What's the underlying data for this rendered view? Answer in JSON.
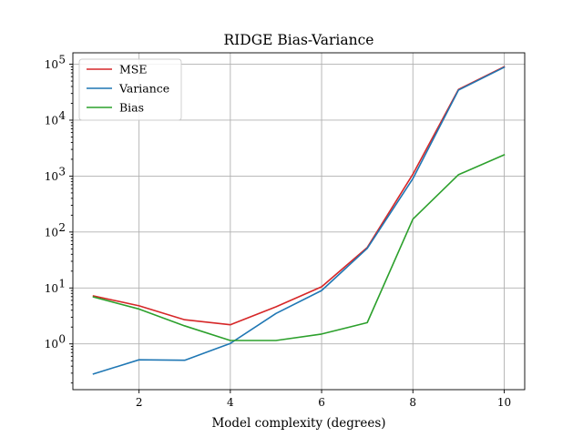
{
  "chart_data": {
    "type": "line",
    "title": "RIDGE Bias-Variance",
    "xlabel": "Model complexity (degrees)",
    "ylabel": "",
    "yscale": "log",
    "xlim": [
      0.55,
      10.45
    ],
    "ylim": [
      0.152,
      160000
    ],
    "xticks": [
      2,
      4,
      6,
      8,
      10
    ],
    "xtick_labels": [
      "2",
      "4",
      "6",
      "8",
      "10"
    ],
    "yticks": [
      1,
      10,
      100,
      1000,
      10000,
      100000
    ],
    "ytick_labels": [
      {
        "base": "10",
        "exp": "0"
      },
      {
        "base": "10",
        "exp": "1"
      },
      {
        "base": "10",
        "exp": "2"
      },
      {
        "base": "10",
        "exp": "3"
      },
      {
        "base": "10",
        "exp": "4"
      },
      {
        "base": "10",
        "exp": "5"
      }
    ],
    "grid": true,
    "legend_position": "upper-left",
    "x": [
      1,
      2,
      3,
      4,
      5,
      6,
      7,
      8,
      9,
      10
    ],
    "series": [
      {
        "name": "MSE",
        "color": "#d62728",
        "values": [
          7.2,
          4.8,
          2.7,
          2.2,
          4.6,
          10.5,
          53,
          1080,
          35500,
          90000
        ]
      },
      {
        "name": "Variance",
        "color": "#1f77b4",
        "values": [
          0.29,
          0.52,
          0.51,
          1.02,
          3.5,
          9.0,
          51,
          900,
          34500,
          88000
        ]
      },
      {
        "name": "Bias",
        "color": "#2ca02c",
        "values": [
          6.9,
          4.2,
          2.1,
          1.15,
          1.15,
          1.5,
          2.4,
          170,
          1060,
          2400
        ]
      }
    ]
  }
}
